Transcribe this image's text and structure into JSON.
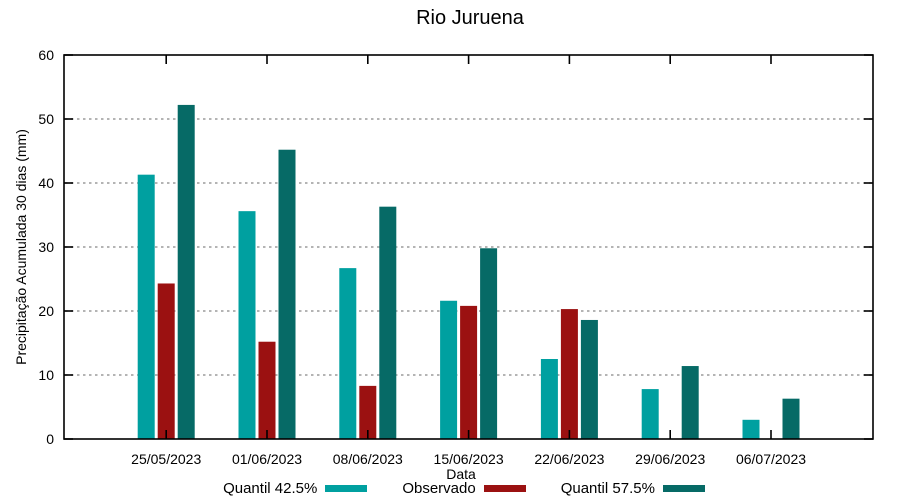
{
  "chart_data": {
    "type": "bar",
    "title": "Rio Juruena",
    "xlabel": "Data",
    "ylabel": "Precipitação Acumulada 30 dias (mm)",
    "ylim": [
      0,
      60
    ],
    "yticks": [
      0,
      10,
      20,
      30,
      40,
      50,
      60
    ],
    "grid": "horizontal-dashed",
    "grid_color": "#9b9b9b",
    "axis_color": "#000000",
    "legend_position": "bottom-center",
    "categories": [
      "25/05/2023",
      "01/06/2023",
      "08/06/2023",
      "15/06/2023",
      "22/06/2023",
      "29/06/2023",
      "06/07/2023"
    ],
    "series": [
      {
        "name": "Quantil 42.5%",
        "color": "#00a0a0",
        "values": [
          41.3,
          35.6,
          26.7,
          21.6,
          12.5,
          7.8,
          3.0
        ]
      },
      {
        "name": "Observado",
        "color": "#9b1111",
        "values": [
          24.3,
          15.2,
          8.3,
          20.8,
          20.3,
          0,
          0
        ]
      },
      {
        "name": "Quantil 57.5%",
        "color": "#066a66",
        "values": [
          52.2,
          45.2,
          36.3,
          29.8,
          18.6,
          11.4,
          6.3
        ]
      }
    ]
  }
}
